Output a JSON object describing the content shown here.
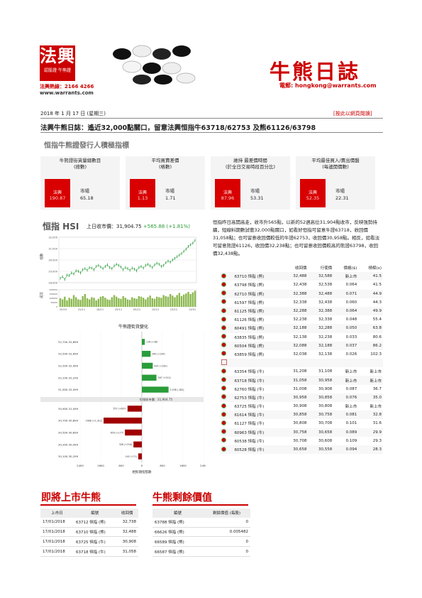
{
  "header": {
    "logo_main": "法興",
    "logo_sub": "認股證 牛熊證",
    "hotline": "法興熱線：2166 4266",
    "website": "www.warrants.com",
    "title": "牛熊日誌",
    "email": "電郵: hongkong@warrants.com",
    "date": "2018 年 1 月 17 日 (星期三)",
    "web_link": "[按此以網頁閱讀]"
  },
  "headline": "法興牛熊日誌：遙近32,000點關口，留意法興恒指牛63718/62753 及熊61126/63798",
  "cards_section_title": "恒指牛熊證發行人積極指標",
  "cards": [
    {
      "title": "牛熊證街貨量總數目\n(按數)",
      "sg_label": "法興",
      "sg_value": "190.87",
      "mkt_label": "市場",
      "mkt_value": "65.18"
    },
    {
      "title": "平均買賣差價\n(格數)",
      "sg_label": "法興",
      "sg_value": "1.13",
      "mkt_label": "市場",
      "mkt_value": "1.71"
    },
    {
      "title": "維持    最差價時間\n(於全日交易時段百分比)",
      "sg_label": "法興",
      "sg_value": "87.96",
      "mkt_label": "市場",
      "mkt_value": "53.31"
    },
    {
      "title": "平均最佳買入/賣出價盤\n(每邊開價數)",
      "sg_label": "法興",
      "sg_value": "52.35",
      "mkt_label": "市場",
      "mkt_value": "22.31"
    }
  ],
  "hsi": {
    "title": "恒指 HSI",
    "close_label": "上日收市價：31,904.75",
    "change": "+565.88 (+1.81%)"
  },
  "chart_data": [
    {
      "type": "line",
      "title": "",
      "ylabel": "指數",
      "y2label": "成交",
      "yticks": [
        "32,000",
        "31,000",
        "30,000",
        "29,000",
        "28,000"
      ],
      "vol_ticks": [
        "200000",
        "150000",
        "100000",
        "50000",
        "0"
      ],
      "xticks": [
        "20/10",
        "31/11",
        "18/11",
        "25/11",
        "05/12",
        "15/12",
        "23/12",
        "13/01"
      ],
      "ylim": [
        28000,
        32200
      ],
      "values": [
        28400,
        28550,
        28300,
        28700,
        28650,
        28900,
        28800,
        29100,
        29050,
        28900,
        29200,
        29300,
        29150,
        29400,
        29350,
        29200,
        29500,
        29600,
        29450,
        29300,
        29500,
        29650,
        29400,
        29300,
        29550,
        29700,
        29600,
        29450,
        29200,
        29400,
        29300,
        29150,
        29350,
        29250,
        29100,
        29400,
        29500,
        29350,
        29600,
        29700,
        29550,
        29400,
        29650,
        29800,
        29700,
        29500,
        29600,
        29850,
        30000,
        29900,
        30100,
        30250,
        30400,
        30550,
        30700,
        30900,
        31100,
        31350,
        31500,
        31650,
        31904
      ],
      "volume": [
        80,
        70,
        95,
        60,
        85,
        75,
        110,
        90,
        70,
        65,
        100,
        120,
        80,
        70,
        90,
        85,
        60,
        75,
        95,
        100,
        85,
        70,
        65,
        90,
        110,
        95,
        80,
        75,
        100,
        85,
        70,
        65,
        90,
        80,
        75,
        100,
        95,
        85,
        70,
        90,
        105,
        80,
        75,
        95,
        90,
        85,
        110,
        100,
        95,
        120,
        105,
        90,
        110,
        130,
        100,
        115,
        125,
        140,
        120,
        135,
        150
      ]
    },
    {
      "type": "bar",
      "title": "牛熊證街貨變化",
      "xlabel": "相對期指張數",
      "center_label": "恒指收市價：31,904.75",
      "xticks": [
        "2400",
        "1600",
        "800",
        "0",
        "800",
        "1600",
        "2400"
      ],
      "xlim": [
        -2400,
        2400
      ],
      "categories": [
        "32,700-32,899",
        "32,500-32,699",
        "32,300-32,499",
        "32,100-32,299",
        "31,900-32,099",
        "30,900-31,099",
        "30,700-30,899",
        "30,500-30,699",
        "30,300-30,499",
        "30,100-30,299"
      ],
      "values": [
        116,
        340,
        424,
        567,
        1038,
        -557,
        -1488,
        -659,
        -326,
        -140
      ],
      "bar_labels": [
        "116 (+38)",
        "340 (+234)",
        "424 (+190)",
        "567 (+312)",
        "1,038 (-182)",
        "557 (+637)",
        "1488 (+1,312)",
        "659 (+177)",
        "326 (+216)",
        "140 (+71)"
      ]
    }
  ],
  "commentary": "恒指昨日高開高走，收市升565點，以新的52週高位31,904點收市，反映強勢持續，短線料期數試衝32,000點關口，如看好恒指可留意牛證63718，收回價31,058點；也可留意收回價較低的牛證62753，收回價30,958點。相反，如看淡可留意熊證61126，收回價32,238點；也可留意收回價較高的熊證63798，收回價32,438點。",
  "warrants": {
    "headers": [
      "",
      "",
      "收回價",
      "行使價",
      "價格($)",
      "槓桿(x)"
    ],
    "rows": [
      [
        "63710 恒指 (熊)",
        "32,488",
        "32,588",
        "新上市",
        "41.5"
      ],
      [
        "63798 恒指 (熊)",
        "32,438",
        "32,538",
        "0.064",
        "41.5"
      ],
      [
        "62710 恒指 (熊)",
        "32,388",
        "32,488",
        "0.071",
        "44.9"
      ],
      [
        "61597 恒指 (熊)",
        "32,338",
        "32,438",
        "0.060",
        "44.3"
      ],
      [
        "61125 恒指 (熊)",
        "32,288",
        "32,388",
        "0.064",
        "49.9"
      ],
      [
        "61126 恒指 (熊)",
        "32,238",
        "32,338",
        "0.048",
        "55.4"
      ],
      [
        "60491 恒指 (熊)",
        "32,188",
        "32,288",
        "0.050",
        "63.8"
      ],
      [
        "63835 恒指 (熊)",
        "32,138",
        "32,238",
        "0.033",
        "80.6"
      ],
      [
        "60504 恒指 (熊)",
        "32,088",
        "32,188",
        "0.037",
        "86.2"
      ],
      [
        "63859 恒指 (熊)",
        "32,038",
        "32,138",
        "0.026",
        "102.3"
      ],
      [
        "",
        "",
        "",
        "",
        ""
      ],
      [
        "63354 恒指 (牛)",
        "31,208",
        "31,108",
        "新上市",
        "新上市"
      ],
      [
        "63718 恒指 (牛)",
        "31,058",
        "30,958",
        "新上市",
        "新上市"
      ],
      [
        "62760 恒指 (牛)",
        "31,008",
        "30,908",
        "0.087",
        "36.7"
      ],
      [
        "62753 恒指 (牛)",
        "30,958",
        "30,858",
        "0.076",
        "35.0"
      ],
      [
        "63725 恒指 (牛)",
        "30,908",
        "30,808",
        "新上市",
        "新上市"
      ],
      [
        "61614 恒指 (牛)",
        "30,858",
        "30,758",
        "0.081",
        "32.8"
      ],
      [
        "61127 恒指 (牛)",
        "30,808",
        "30,708",
        "0.101",
        "31.6"
      ],
      [
        "60963 恒指 (牛)",
        "30,758",
        "30,658",
        "0.089",
        "29.9"
      ],
      [
        "60538 恒指 (牛)",
        "30,708",
        "30,608",
        "0.109",
        "29.3"
      ],
      [
        "60528 恒指 (牛)",
        "30,658",
        "30,558",
        "0.094",
        "28.3"
      ]
    ]
  },
  "upcoming": {
    "title": "即將上市牛熊",
    "headers": [
      "上市日",
      "編號",
      "收回價"
    ],
    "rows": [
      [
        "17/01/2018",
        "63712 恒指 (熊)",
        "32,738"
      ],
      [
        "17/01/2018",
        "63710 恒指 (熊)",
        "32,488"
      ],
      [
        "17/01/2018",
        "63725 恒指 (牛)",
        "30,908"
      ],
      [
        "17/01/2018",
        "63718 恒指 (牛)",
        "31,058"
      ]
    ]
  },
  "residual": {
    "title": "牛熊剩餘價值",
    "headers": [
      "編號",
      "剩餘價值 (每股)"
    ],
    "rows": [
      [
        "63788 恒指 (熊)",
        "0"
      ],
      [
        "66626 恒指 (熊)",
        "0.005482"
      ],
      [
        "66589 恒指 (熊)",
        "0"
      ],
      [
        "66587 恒指 (熊)",
        "0"
      ]
    ]
  },
  "colors": {
    "brand": "#cc0000",
    "bull": "#2a9d3a",
    "bear": "#a00000"
  }
}
